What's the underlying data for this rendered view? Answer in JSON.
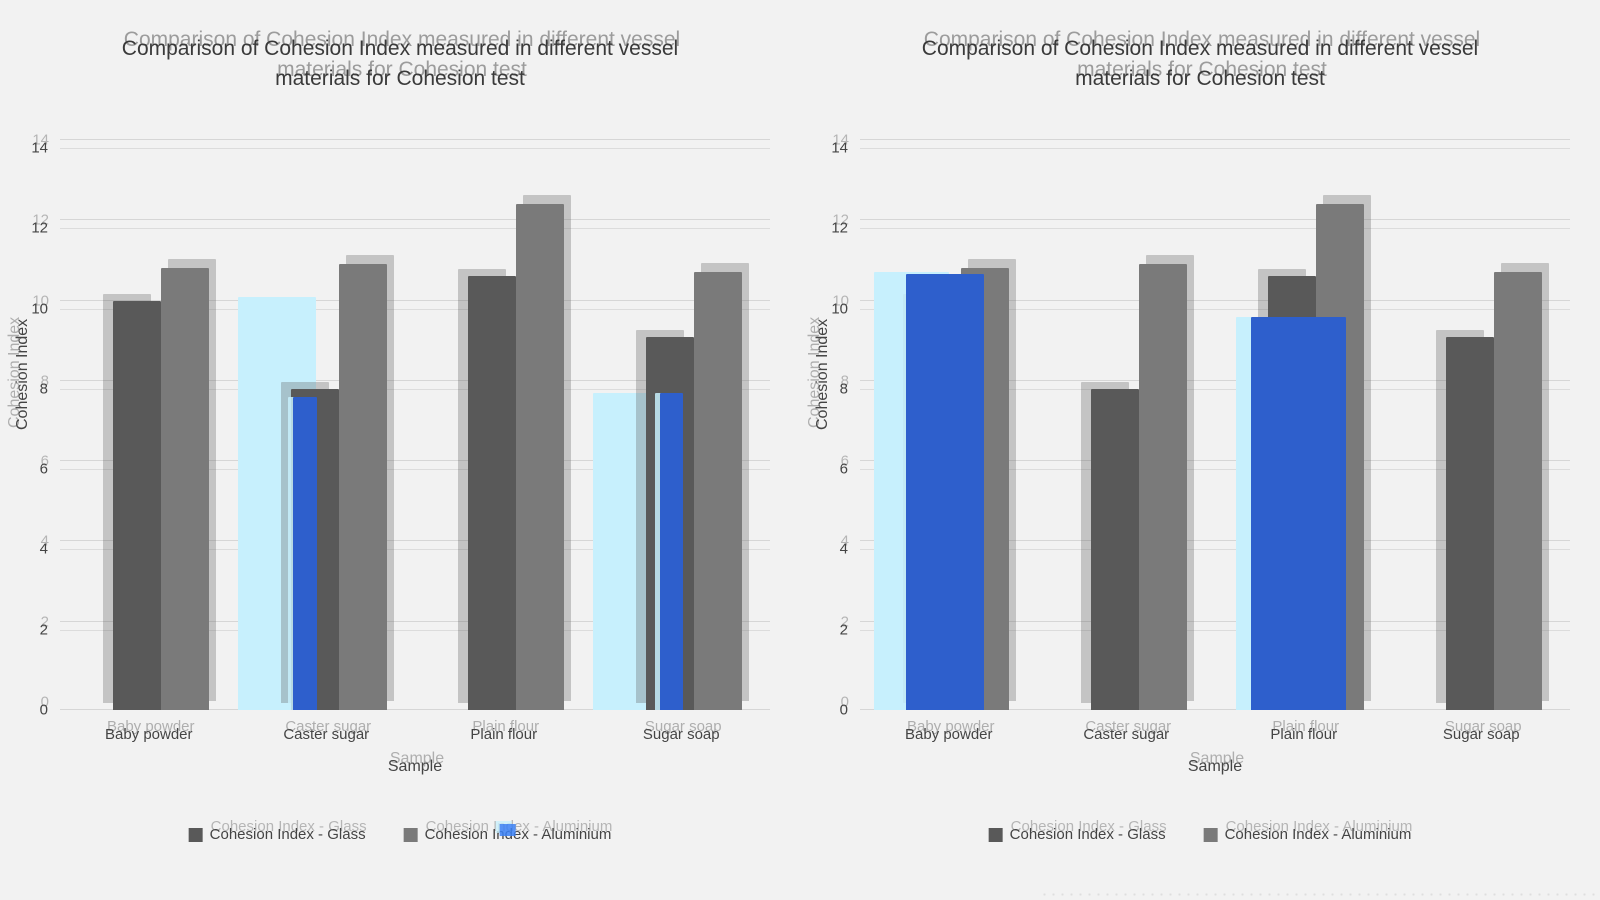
{
  "page": {
    "background_color": "#f2f2f2",
    "description": "Two side-by-side grouped bar charts with double-exposure ghosting artifacts"
  },
  "colors": {
    "glass_series": "#595959",
    "aluminium_series": "#7a7a7a",
    "ghost_light_blue": "#c7f0fd",
    "ghost_royal_blue": "#2e5fcc",
    "gridline": "#dcdcdc",
    "text": "#3d3d3d"
  },
  "chart_data": [
    {
      "type": "bar",
      "title": "Comparison of Cohesion Index measured in different vessel materials for Cohesion test",
      "xlabel": "Sample",
      "ylabel": "Cohesion Index",
      "ylim": [
        0,
        14
      ],
      "yticks": [
        0,
        2,
        4,
        6,
        8,
        10,
        12,
        14
      ],
      "grid": true,
      "legend_position": "bottom",
      "categories": [
        "Baby powder",
        "Caster sugar",
        "Plain flour",
        "Sugar soap"
      ],
      "series": [
        {
          "name": "Cohesion Index - Glass",
          "color_key": "glass_series",
          "values": [
            10.2,
            8.0,
            10.8,
            9.3
          ]
        },
        {
          "name": "Cohesion Index - Aluminium",
          "color_key": "aluminium_series",
          "values": [
            11.0,
            11.1,
            12.6,
            10.9
          ]
        }
      ],
      "ghost_bars": [
        {
          "category_index": 1,
          "color_key": "ghost_light_blue",
          "value": 10.3,
          "left_pct": 0,
          "width_pct": 44
        },
        {
          "category_index": 1,
          "color_key": "ghost_royal_blue",
          "value": 7.8,
          "left_pct": 31,
          "width_pct": 14
        },
        {
          "category_index": 3,
          "color_key": "ghost_light_blue",
          "value": 7.9,
          "left_pct": 0,
          "width_pct": 40
        },
        {
          "category_index": 3,
          "color_key": "ghost_royal_blue",
          "value": 7.9,
          "left_pct": 38,
          "width_pct": 13
        }
      ],
      "has_legend_blue_glitch": true
    },
    {
      "type": "bar",
      "title": "Comparison of Cohesion Index measured in different vessel materials for Cohesion test",
      "xlabel": "Sample",
      "ylabel": "Cohesion Index",
      "ylim": [
        0,
        14
      ],
      "yticks": [
        0,
        2,
        4,
        6,
        8,
        10,
        12,
        14
      ],
      "grid": true,
      "legend_position": "bottom",
      "categories": [
        "Baby powder",
        "Caster sugar",
        "Plain flour",
        "Sugar soap"
      ],
      "series": [
        {
          "name": "Cohesion Index - Glass",
          "color_key": "glass_series",
          "values": [
            10.2,
            8.0,
            10.8,
            9.3
          ]
        },
        {
          "name": "Cohesion Index - Aluminium",
          "color_key": "aluminium_series",
          "values": [
            11.0,
            11.1,
            12.6,
            10.9
          ]
        }
      ],
      "ghost_bars": [
        {
          "category_index": 0,
          "color_key": "ghost_light_blue",
          "value": 10.9,
          "left_pct": 8,
          "width_pct": 42
        },
        {
          "category_index": 0,
          "color_key": "ghost_royal_blue",
          "value": 10.85,
          "left_pct": 26,
          "width_pct": 44
        },
        {
          "category_index": 2,
          "color_key": "ghost_light_blue",
          "value": 9.8,
          "left_pct": 12,
          "width_pct": 34
        },
        {
          "category_index": 2,
          "color_key": "ghost_royal_blue",
          "value": 9.8,
          "left_pct": 20,
          "width_pct": 54
        }
      ],
      "has_legend_blue_glitch": false
    }
  ]
}
